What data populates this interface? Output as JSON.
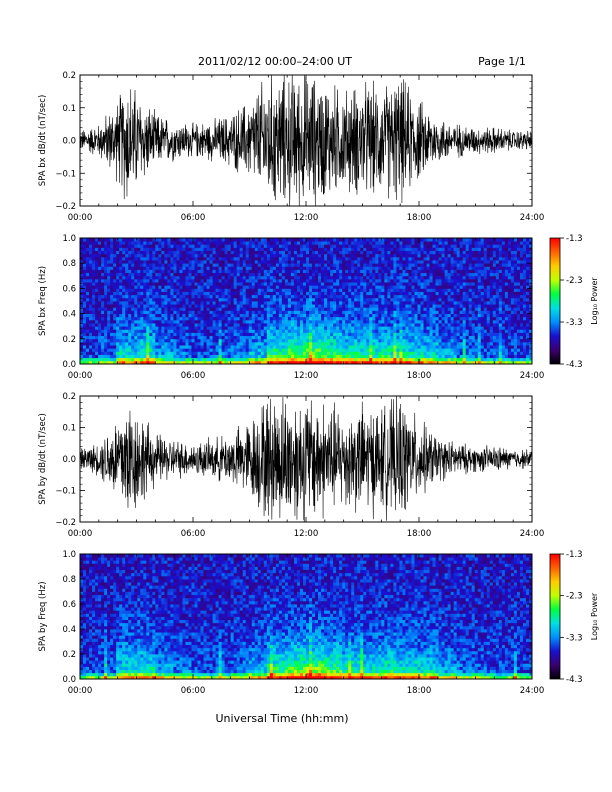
{
  "header": {
    "title": "2011/02/12  00:00–24:00 UT",
    "page": "Page 1/1"
  },
  "footer": {
    "xlabel": "Universal Time (hh:mm)"
  },
  "x_ticks": [
    "00:00",
    "06:00",
    "12:00",
    "18:00",
    "24:00"
  ],
  "colorbar": {
    "label": "Log₁₀ Power",
    "ticks": [
      "-1.3",
      "-2.3",
      "-3.3",
      "-4.3"
    ],
    "range": [
      -4.3,
      -1.3
    ],
    "colors": [
      "#000000",
      "#3a0070",
      "#1a10d0",
      "#0090ff",
      "#00e0e0",
      "#00ff40",
      "#c0ff00",
      "#ffcc00",
      "#ff6000",
      "#ff0000"
    ]
  },
  "chart_data": [
    {
      "id": "bx-wave",
      "type": "line",
      "ylabel": "SPA bx dB/dt (nT/sec)",
      "xlim": [
        0,
        24
      ],
      "ylim": [
        -0.2,
        0.2
      ],
      "y_ticks": [
        "0.2",
        "0.1",
        "0.0",
        "−0.1",
        "−0.2"
      ],
      "series": [
        {
          "x": [
            0,
            1,
            2,
            2.5,
            3,
            4,
            5,
            6,
            7,
            8,
            9,
            10,
            11,
            12,
            13,
            14,
            15,
            16,
            17,
            18,
            19,
            20,
            21,
            22,
            23,
            24
          ],
          "y_amplitude": [
            0.03,
            0.05,
            0.12,
            0.2,
            0.15,
            0.08,
            0.06,
            0.05,
            0.06,
            0.08,
            0.12,
            0.2,
            0.2,
            0.2,
            0.18,
            0.15,
            0.17,
            0.16,
            0.19,
            0.12,
            0.07,
            0.05,
            0.04,
            0.04,
            0.03,
            0.03
          ]
        }
      ]
    },
    {
      "id": "bx-spec",
      "type": "heatmap",
      "ylabel": "SPA bx Freq (Hz)",
      "xlim": [
        0,
        24
      ],
      "ylim": [
        0.0,
        1.0
      ],
      "y_ticks": [
        "1.0",
        "0.8",
        "0.6",
        "0.4",
        "0.2",
        "0.0"
      ],
      "value_range": [
        -4.3,
        -1.3
      ],
      "activity_profile": [
        0.1,
        0.15,
        0.45,
        0.5,
        0.3,
        0.2,
        0.15,
        0.15,
        0.2,
        0.35,
        0.6,
        0.7,
        0.75,
        0.65,
        0.55,
        0.5,
        0.55,
        0.5,
        0.45,
        0.3,
        0.2,
        0.15,
        0.1,
        0.1,
        0.1
      ]
    },
    {
      "id": "by-wave",
      "type": "line",
      "ylabel": "SPA by dB/dt (nT/sec)",
      "xlim": [
        0,
        24
      ],
      "ylim": [
        -0.2,
        0.2
      ],
      "y_ticks": [
        "0.2",
        "0.1",
        "0.0",
        "−0.1",
        "−0.2"
      ],
      "series": [
        {
          "x": [
            0,
            1,
            2,
            2.5,
            3,
            4,
            5,
            6,
            7,
            8,
            9,
            10,
            11,
            12,
            13,
            14,
            15,
            16,
            17,
            18,
            19,
            20,
            21,
            22,
            23,
            24
          ],
          "y_amplitude": [
            0.03,
            0.05,
            0.14,
            0.2,
            0.16,
            0.08,
            0.06,
            0.05,
            0.06,
            0.08,
            0.12,
            0.2,
            0.2,
            0.2,
            0.18,
            0.15,
            0.17,
            0.16,
            0.19,
            0.12,
            0.07,
            0.05,
            0.04,
            0.04,
            0.03,
            0.03
          ]
        }
      ]
    },
    {
      "id": "by-spec",
      "type": "heatmap",
      "ylabel": "SPA by Freq (Hz)",
      "xlim": [
        0,
        24
      ],
      "ylim": [
        0.0,
        1.0
      ],
      "y_ticks": [
        "1.0",
        "0.8",
        "0.6",
        "0.4",
        "0.2",
        "0.0"
      ],
      "value_range": [
        -4.3,
        -1.3
      ],
      "activity_profile": [
        0.1,
        0.15,
        0.45,
        0.5,
        0.3,
        0.2,
        0.15,
        0.15,
        0.2,
        0.35,
        0.6,
        0.7,
        0.75,
        0.65,
        0.55,
        0.5,
        0.55,
        0.5,
        0.45,
        0.3,
        0.2,
        0.15,
        0.1,
        0.1,
        0.1
      ]
    }
  ]
}
